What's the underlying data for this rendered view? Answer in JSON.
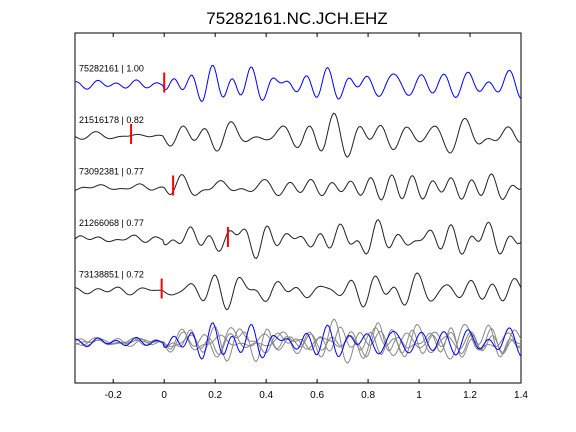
{
  "chart_data": {
    "type": "line",
    "title": "75282161.NC.JCH.EHZ",
    "xlabel": "",
    "ylabel": "",
    "xlim": [
      -0.35,
      1.4
    ],
    "xticks": [
      -0.2,
      0,
      0.2,
      0.4,
      0.6,
      0.8,
      1,
      1.2,
      1.4
    ],
    "xtick_labels": [
      "-0.2",
      "0",
      "0.2",
      "0.4",
      "0.6",
      "0.8",
      "1",
      "1.2",
      "1.4"
    ],
    "grid": false,
    "colors": {
      "reference": "#0000ff",
      "trace": "#222222",
      "stack": "#888888",
      "pick": "#ff0000",
      "axes": "#000000"
    },
    "series": [
      {
        "name": "75282161 | 1.00",
        "pick": 0.0,
        "baseline": 1
      },
      {
        "name": "21516178 | 0.82",
        "pick": -0.13,
        "baseline": 2
      },
      {
        "name": "73092381 | 0.77",
        "pick": 0.035,
        "baseline": 3
      },
      {
        "name": "21266068 | 0.77",
        "pick": 0.25,
        "baseline": 4
      },
      {
        "name": "73138851 | 0.72",
        "pick": -0.01,
        "baseline": 5
      }
    ],
    "overlay_baseline": 6
  }
}
